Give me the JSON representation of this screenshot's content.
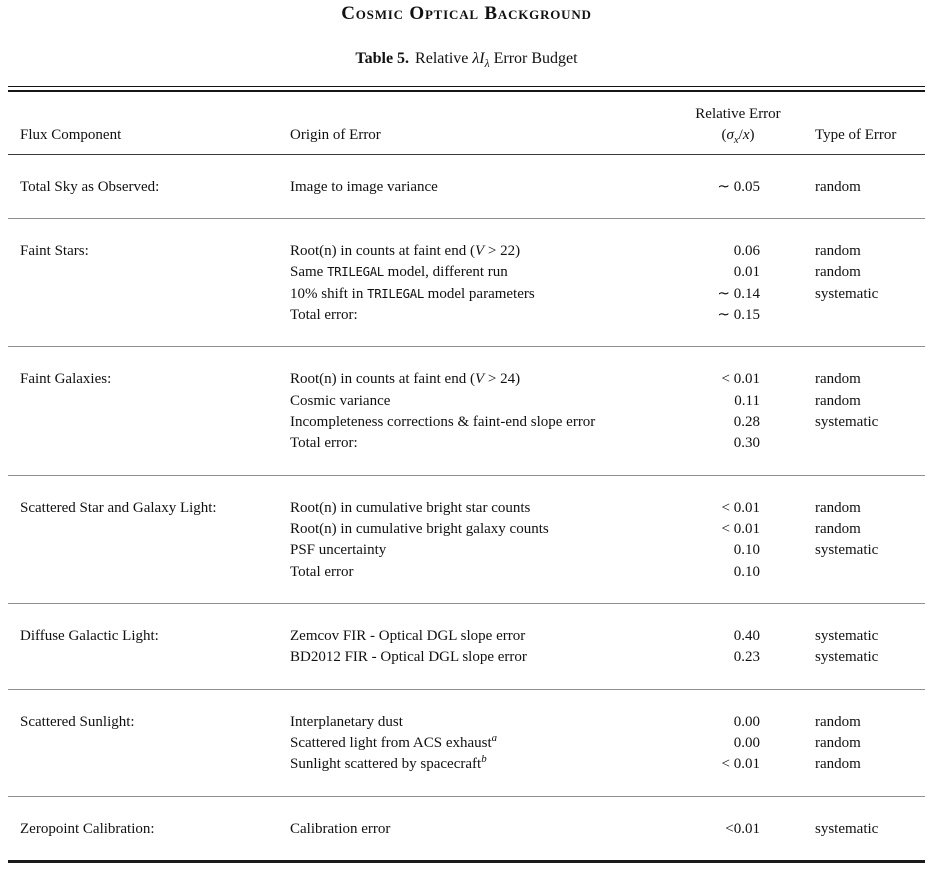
{
  "header": {
    "running_title": "Cosmic Optical Background"
  },
  "caption": {
    "label": "Table 5.",
    "title": "Relative {{i:λI}}{{isub:λ}} Error Budget"
  },
  "columns": {
    "flux_component": "Flux Component",
    "origin_of_error": "Origin of Error",
    "relative_error_line1": "Relative Error",
    "relative_error_line2": "({{i:σ}}{{isub:x}}/{{i:x}})",
    "type_of_error": "Type of Error"
  },
  "table": {
    "sections": [
      {
        "component": "Total Sky as Observed:",
        "rows": [
          {
            "origin": "Image to image variance",
            "error": "∼ 0.05",
            "type": "random"
          }
        ]
      },
      {
        "component": "Faint Stars:",
        "rows": [
          {
            "origin": "Root(n) in counts at faint end ({{i:V}} > 22)",
            "error": "0.06",
            "type": "random"
          },
          {
            "origin": "Same {{tt:TRILEGAL}} model, different run",
            "error": "0.01",
            "type": "random"
          },
          {
            "origin": "10% shift in {{tt:TRILEGAL}} model parameters",
            "error": "∼ 0.14",
            "type": "systematic"
          },
          {
            "origin": "Total error:",
            "error": "∼ 0.15",
            "type": ""
          }
        ]
      },
      {
        "component": "Faint Galaxies:",
        "rows": [
          {
            "origin": "Root(n) in counts at faint end ({{i:V}} > 24)",
            "error": "< 0.01",
            "type": "random"
          },
          {
            "origin": "Cosmic variance",
            "error": "0.11",
            "type": "random"
          },
          {
            "origin": "Incompleteness corrections & faint-end slope error",
            "error": "0.28",
            "type": "systematic"
          },
          {
            "origin": "Total error:",
            "error": "0.30",
            "type": ""
          }
        ]
      },
      {
        "component": "Scattered Star and Galaxy Light:",
        "rows": [
          {
            "origin": "Root(n) in cumulative bright star counts",
            "error": "< 0.01",
            "type": "random"
          },
          {
            "origin": "Root(n) in cumulative bright galaxy counts",
            "error": "< 0.01",
            "type": "random"
          },
          {
            "origin": "PSF uncertainty",
            "error": "0.10",
            "type": "systematic"
          },
          {
            "origin": "Total error",
            "error": "0.10",
            "type": ""
          }
        ]
      },
      {
        "component": "Diffuse Galactic Light:",
        "rows": [
          {
            "origin": "Zemcov FIR - Optical DGL slope error",
            "error": "0.40",
            "type": "systematic"
          },
          {
            "origin": "BD2012 FIR - Optical DGL slope error",
            "error": "0.23",
            "type": "systematic"
          }
        ]
      },
      {
        "component": "Scattered Sunlight:",
        "rows": [
          {
            "origin": "Interplanetary dust",
            "error": "0.00",
            "type": "random"
          },
          {
            "origin": "Scattered light from ACS exhaust{{sup:a}}",
            "error": "0.00",
            "type": "random"
          },
          {
            "origin": "Sunlight scattered by spacecraft{{sup:b}}",
            "error": "< 0.01",
            "type": "random"
          }
        ]
      },
      {
        "component": "Zeropoint Calibration:",
        "rows": [
          {
            "origin": "Calibration error",
            "error": "<0.01",
            "type": "systematic"
          }
        ]
      }
    ]
  }
}
